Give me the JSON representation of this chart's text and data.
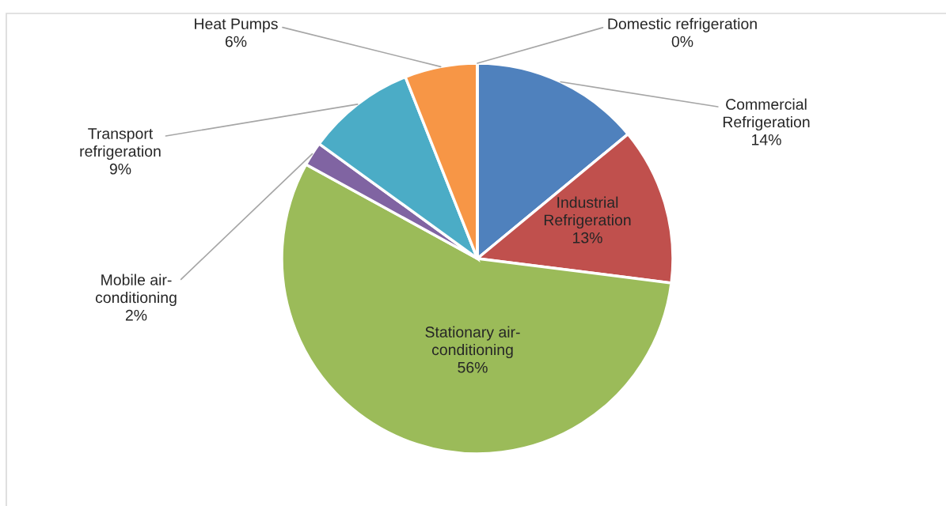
{
  "chart_data": {
    "type": "pie",
    "categories": [
      "Commercial Refrigeration",
      "Industrial Refrigeration",
      "Stationary air-conditioning",
      "Mobile air-conditioning",
      "Transport refrigeration",
      "Heat Pumps",
      "Domestic refrigeration"
    ],
    "values": [
      14,
      13,
      56,
      2,
      9,
      6,
      0
    ],
    "colors": [
      "#4f81bd",
      "#c0504d",
      "#9bbb59",
      "#8064a2",
      "#4bacc6",
      "#f79646",
      "#2c4d75"
    ],
    "value_labels": [
      "14%",
      "13%",
      "56%",
      "2%",
      "9%",
      "6%",
      "0%"
    ]
  }
}
